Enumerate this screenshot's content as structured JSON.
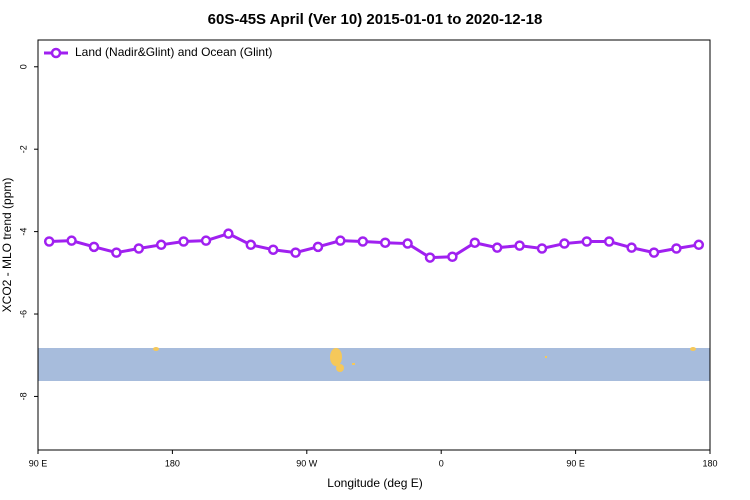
{
  "chart_data": {
    "type": "line",
    "title": "60S-45S April (Ver 10)   2015-01-01 to 2020-12-18",
    "x_label": "Longitude (deg E)",
    "y_label": "XCO2 - MLO trend (ppm)",
    "legend_position": "top-left",
    "xlim": [
      90,
      540
    ],
    "ylim": [
      -9.3,
      0.65
    ],
    "xticks": [
      {
        "value": 90,
        "label": "90 E"
      },
      180,
      {
        "value": 270,
        "label": "90 W"
      },
      {
        "value": 360,
        "label": "0"
      },
      {
        "value": 450,
        "label": "90 E"
      },
      {
        "value": 540,
        "label": "180"
      }
    ],
    "yticks": [
      0,
      -2,
      -4,
      -6,
      -8
    ],
    "x": [
      97.5,
      112.5,
      127.5,
      142.5,
      157.5,
      172.5,
      187.5,
      202.5,
      217.5,
      232.5,
      247.5,
      262.5,
      277.5,
      292.5,
      307.5,
      322.5,
      337.5,
      352.5,
      367.5,
      382.5,
      397.5,
      412.5,
      427.5,
      442.5,
      457.5,
      472.5,
      487.5,
      502.5,
      517.5,
      532.5
    ],
    "series": [
      {
        "name": "Land (Nadir&Glint) and Ocean (Glint)",
        "color": "#a020f0",
        "values": [
          -4.24,
          -4.22,
          -4.37,
          -4.51,
          -4.41,
          -4.32,
          -4.24,
          -4.22,
          -4.05,
          -4.32,
          -4.44,
          -4.51,
          -4.37,
          -4.22,
          -4.24,
          -4.27,
          -4.29,
          -4.63,
          -4.61,
          -4.27,
          -4.39,
          -4.34,
          -4.41,
          -4.29,
          -4.24,
          -4.24,
          -4.39,
          -4.51,
          -4.41,
          -4.32
        ]
      }
    ]
  }
}
